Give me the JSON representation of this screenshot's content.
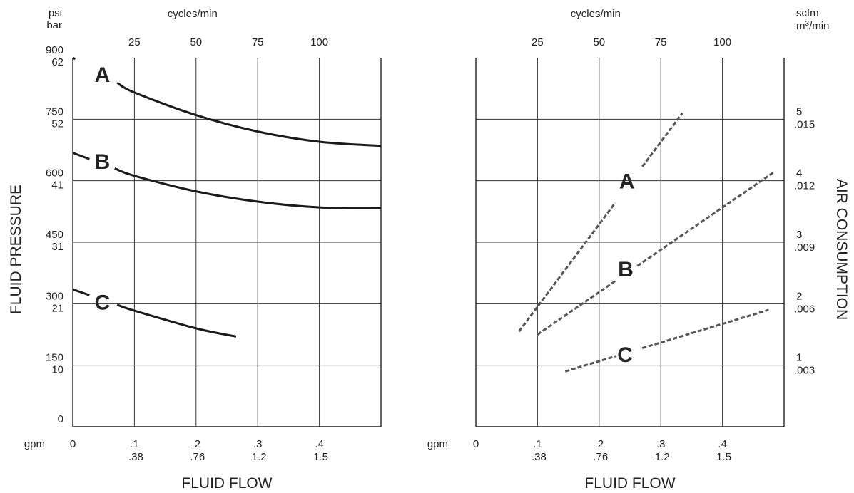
{
  "chart_data": [
    {
      "type": "line",
      "ylabel": "FLUID PRESSURE",
      "xlabel": "FLUID FLOW",
      "y_units": [
        "psi",
        "bar"
      ],
      "y_ticks": [
        {
          "psi": "0",
          "bar": ""
        },
        {
          "psi": "150",
          "bar": "10"
        },
        {
          "psi": "300",
          "bar": "21"
        },
        {
          "psi": "450",
          "bar": "31"
        },
        {
          "psi": "600",
          "bar": "41"
        },
        {
          "psi": "750",
          "bar": "52"
        },
        {
          "psi": "900",
          "bar": "62"
        }
      ],
      "ylim": [
        0,
        900
      ],
      "x_unit": "gpm",
      "x_ticks": [
        {
          "gpm": "0",
          "lpm": ""
        },
        {
          "gpm": ".1",
          "lpm": ".38"
        },
        {
          "gpm": ".2",
          "lpm": ".76"
        },
        {
          "gpm": ".3",
          "lpm": "1.2"
        },
        {
          "gpm": ".4",
          "lpm": "1.5"
        }
      ],
      "xlim": [
        0,
        0.5
      ],
      "top_axis_label": "cycles/min",
      "top_ticks": [
        {
          "label": "25",
          "x": 0.1
        },
        {
          "label": "50",
          "x": 0.2
        },
        {
          "label": "75",
          "x": 0.3
        },
        {
          "label": "100",
          "x": 0.4
        }
      ],
      "grid": true,
      "series": [
        {
          "name": "A",
          "label_at": [
            0.048,
            860
          ],
          "gaps": [
            [
              0.004,
              0.072
            ]
          ],
          "x": [
            0,
            0.1,
            0.2,
            0.3,
            0.4,
            0.5
          ],
          "y": [
            900,
            815,
            760,
            720,
            695,
            685
          ]
        },
        {
          "name": "B",
          "label_at": [
            0.048,
            648
          ],
          "gaps": [
            [
              0.027,
              0.068
            ]
          ],
          "x": [
            0,
            0.1,
            0.2,
            0.3,
            0.4,
            0.5
          ],
          "y": [
            668,
            612,
            574,
            549,
            535,
            533
          ]
        },
        {
          "name": "C",
          "label_at": [
            0.048,
            305
          ],
          "gaps": [
            [
              0.027,
              0.072
            ]
          ],
          "x": [
            0,
            0.1,
            0.2,
            0.265
          ],
          "y": [
            335,
            283,
            240,
            220
          ]
        }
      ]
    },
    {
      "type": "line",
      "xlabel": "FLUID FLOW",
      "ylabel": "AIR CONSUMPTION",
      "y_units": [
        "scfm",
        "m3/min"
      ],
      "y_ticks": [
        {
          "scfm": "1",
          "m3min": ".003"
        },
        {
          "scfm": "2",
          "m3min": ".006"
        },
        {
          "scfm": "3",
          "m3min": ".009"
        },
        {
          "scfm": "4",
          "m3min": ".012"
        },
        {
          "scfm": "5",
          "m3min": ".015"
        }
      ],
      "ylim": [
        0,
        6
      ],
      "x_unit": "gpm",
      "x_ticks": [
        {
          "gpm": "0",
          "lpm": ""
        },
        {
          "gpm": ".1",
          "lpm": ".38"
        },
        {
          "gpm": ".2",
          "lpm": ".76"
        },
        {
          "gpm": ".3",
          "lpm": "1.2"
        },
        {
          "gpm": ".4",
          "lpm": "1.5"
        }
      ],
      "xlim": [
        0,
        0.5
      ],
      "top_axis_label": "cycles/min",
      "top_ticks": [
        {
          "label": "25",
          "x": 0.1
        },
        {
          "label": "50",
          "x": 0.2
        },
        {
          "label": "75",
          "x": 0.3
        },
        {
          "label": "100",
          "x": 0.4
        }
      ],
      "grid": true,
      "series": [
        {
          "name": "A",
          "label_at": [
            0.245,
            4
          ],
          "gaps": [
            [
              0.226,
              0.27
            ]
          ],
          "x": [
            0.07,
            0.335
          ],
          "y": [
            1.55,
            5.1
          ]
        },
        {
          "name": "B",
          "label_at": [
            0.243,
            2.57
          ],
          "gaps": [
            [
              0.228,
              0.262
            ]
          ],
          "x": [
            0.1,
            0.485
          ],
          "y": [
            1.5,
            4.15
          ]
        },
        {
          "name": "C",
          "label_at": [
            0.242,
            1.18
          ],
          "gaps": [
            [
              0.228,
              0.27
            ]
          ],
          "x": [
            0.145,
            0.475
          ],
          "y": [
            0.9,
            1.9
          ]
        }
      ]
    }
  ]
}
